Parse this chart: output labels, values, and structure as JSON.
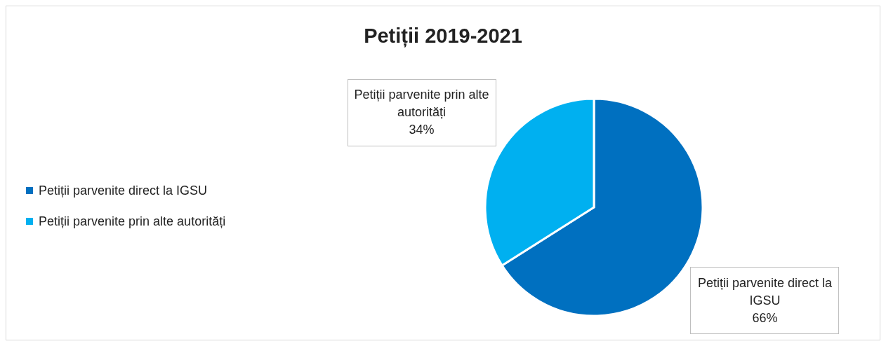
{
  "chart_data": {
    "type": "pie",
    "title": "Petiții 2019-2021",
    "categories": [
      "Petiții parvenite direct la IGSU",
      "Petiții parvenite prin alte autorități"
    ],
    "values": [
      66,
      34
    ],
    "colors": [
      "#0070c0",
      "#00b0f0"
    ],
    "value_labels": [
      "66%",
      "34%"
    ],
    "legend": "left"
  }
}
